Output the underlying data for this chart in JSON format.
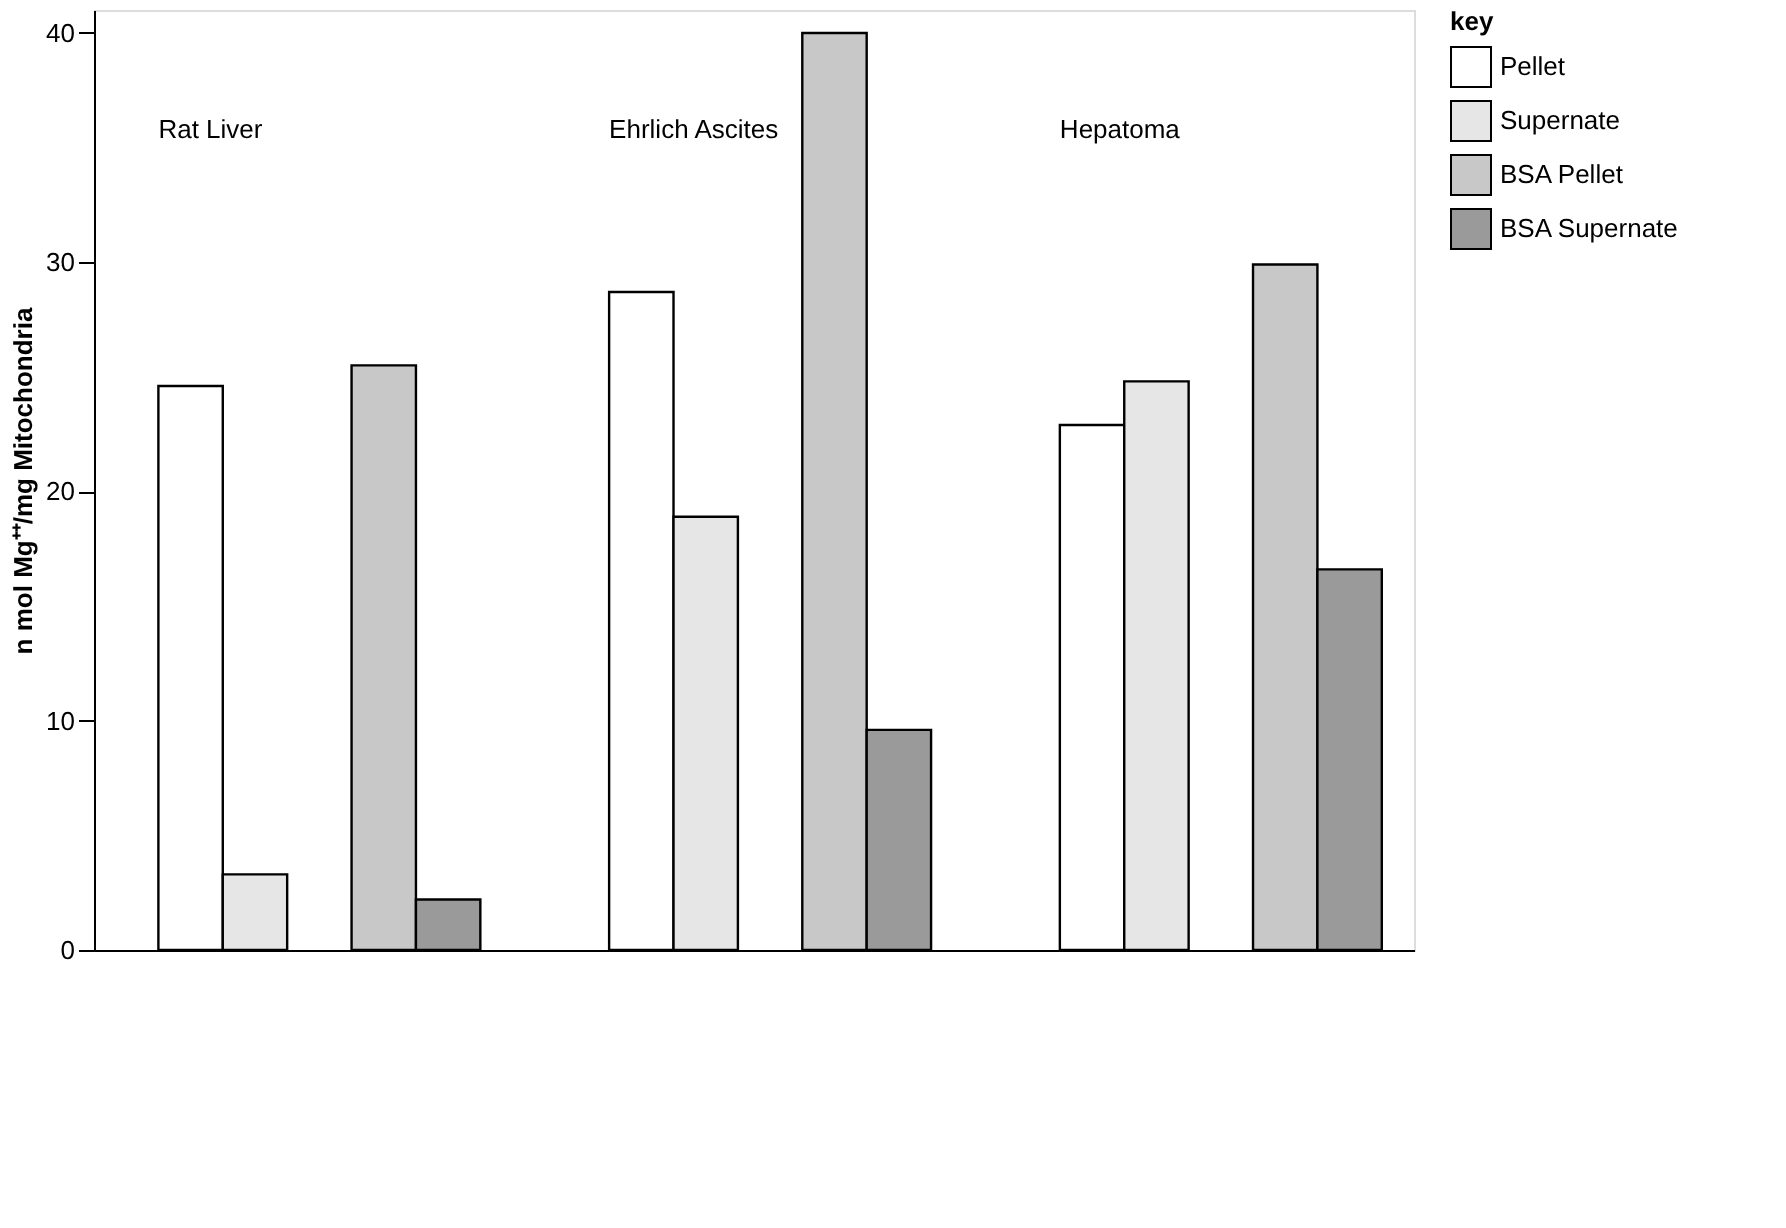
{
  "chart_data": {
    "type": "bar",
    "ylabel": "n mol  Mg⁺⁺/mg Mitochondria",
    "legend_title": "key",
    "categories": [
      "Rat Liver",
      "Ehrlich Ascites",
      "Hepatoma"
    ],
    "series": [
      {
        "name": "Pellet",
        "color": "#ffffff",
        "values": [
          24.6,
          28.7,
          22.9
        ]
      },
      {
        "name": "Supernate",
        "color": "#e6e6e6",
        "values": [
          3.3,
          18.9,
          24.8
        ]
      },
      {
        "name": "BSA Pellet",
        "color": "#c8c8c8",
        "values": [
          25.5,
          40,
          29.9
        ]
      },
      {
        "name": "BSA Supernate",
        "color": "#9a9a9a",
        "values": [
          2.2,
          9.6,
          16.6
        ]
      }
    ],
    "ylim": [
      0,
      41
    ],
    "yticks": [
      0,
      10,
      20,
      30,
      40
    ],
    "grid": false,
    "legend": "top right"
  }
}
